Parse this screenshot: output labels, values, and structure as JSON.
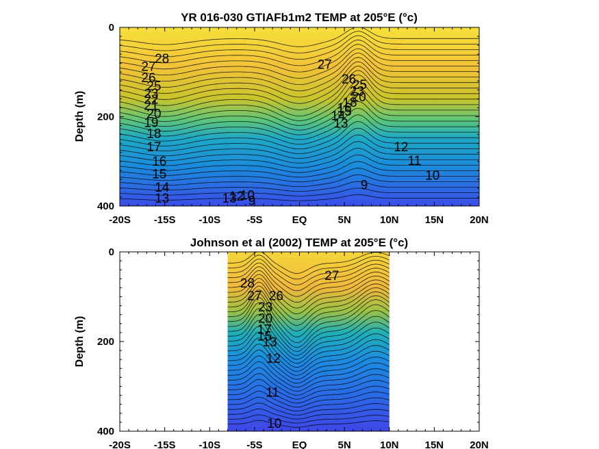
{
  "chart_data": [
    {
      "type": "heatmap",
      "title": "YR 016-030 GTIAFb1m2 TEMP at 205°E (°c)",
      "ylabel": "Depth (m)",
      "xlim": [
        -20,
        20
      ],
      "ylim": [
        0,
        400
      ],
      "y_reversed": true,
      "x_ticks": [
        -20,
        -15,
        -10,
        -5,
        0,
        5,
        10,
        15,
        20
      ],
      "x_tick_labels": [
        "-20S",
        "-15S",
        "-10S",
        "-5S",
        "EQ",
        "5N",
        "10N",
        "15N",
        "20N"
      ],
      "y_ticks": [
        0,
        200,
        400
      ],
      "y_tick_labels": [
        "0",
        "200",
        "400"
      ],
      "data_extent_x": [
        -20,
        20
      ],
      "colormap": "parula",
      "contour_levels": [
        9,
        10,
        11,
        12,
        13,
        14,
        15,
        16,
        17,
        18,
        19,
        20,
        21,
        22,
        23,
        24,
        25,
        26,
        27,
        28
      ],
      "contour_labels": [
        {
          "text": "28",
          "x": -15.3,
          "y": 72
        },
        {
          "text": "27",
          "x": -16.8,
          "y": 90
        },
        {
          "text": "26",
          "x": -16.8,
          "y": 115
        },
        {
          "text": "25",
          "x": -16.2,
          "y": 133
        },
        {
          "text": "23",
          "x": -16.5,
          "y": 150
        },
        {
          "text": "22",
          "x": -16.5,
          "y": 163
        },
        {
          "text": "21",
          "x": -16.5,
          "y": 177
        },
        {
          "text": "20",
          "x": -16.2,
          "y": 195
        },
        {
          "text": "19",
          "x": -16.5,
          "y": 215
        },
        {
          "text": "18",
          "x": -16.2,
          "y": 240
        },
        {
          "text": "17",
          "x": -16.2,
          "y": 270
        },
        {
          "text": "16",
          "x": -15.6,
          "y": 302
        },
        {
          "text": "15",
          "x": -15.6,
          "y": 330
        },
        {
          "text": "14",
          "x": -15.3,
          "y": 360
        },
        {
          "text": "13",
          "x": -15.3,
          "y": 385
        },
        {
          "text": "13",
          "x": -7.8,
          "y": 385
        },
        {
          "text": "12",
          "x": -7.0,
          "y": 380
        },
        {
          "text": "10",
          "x": -5.8,
          "y": 378
        },
        {
          "text": "9",
          "x": -5.3,
          "y": 390
        },
        {
          "text": "27",
          "x": 2.8,
          "y": 85
        },
        {
          "text": "26",
          "x": 5.5,
          "y": 118
        },
        {
          "text": "25",
          "x": 6.7,
          "y": 130
        },
        {
          "text": "23",
          "x": 6.4,
          "y": 145
        },
        {
          "text": "20",
          "x": 6.6,
          "y": 158
        },
        {
          "text": "18",
          "x": 5.6,
          "y": 170
        },
        {
          "text": "16",
          "x": 5.0,
          "y": 182
        },
        {
          "text": "15",
          "x": 5.0,
          "y": 190
        },
        {
          "text": "14",
          "x": 4.3,
          "y": 200
        },
        {
          "text": "13",
          "x": 4.6,
          "y": 217
        },
        {
          "text": "12",
          "x": 11.3,
          "y": 270
        },
        {
          "text": "11",
          "x": 12.8,
          "y": 300
        },
        {
          "text": "10",
          "x": 14.8,
          "y": 333
        },
        {
          "text": "9",
          "x": 7.2,
          "y": 355
        }
      ]
    },
    {
      "type": "heatmap",
      "title": "Johnson et al (2002) TEMP at 205°E (°c)",
      "ylabel": "Depth (m)",
      "xlim": [
        -20,
        20
      ],
      "ylim": [
        0,
        400
      ],
      "y_reversed": true,
      "x_ticks": [
        -20,
        -15,
        -10,
        -5,
        0,
        5,
        10,
        15,
        20
      ],
      "x_tick_labels": [
        "-20S",
        "-15S",
        "-10S",
        "-5S",
        "EQ",
        "5N",
        "10N",
        "15N",
        "20N"
      ],
      "y_ticks": [
        0,
        200,
        400
      ],
      "y_tick_labels": [
        "0",
        "200",
        "400"
      ],
      "data_extent_x": [
        -8,
        10
      ],
      "colormap": "parula",
      "contour_levels": [
        10,
        11,
        12,
        13,
        14,
        15,
        16,
        17,
        18,
        19,
        20,
        21,
        22,
        23,
        24,
        25,
        26,
        27,
        28
      ],
      "contour_labels": [
        {
          "text": "28",
          "x": -5.8,
          "y": 72
        },
        {
          "text": "27",
          "x": -5.0,
          "y": 100
        },
        {
          "text": "26",
          "x": -2.6,
          "y": 100
        },
        {
          "text": "23",
          "x": -3.8,
          "y": 125
        },
        {
          "text": "20",
          "x": -3.8,
          "y": 150
        },
        {
          "text": "17",
          "x": -3.9,
          "y": 175
        },
        {
          "text": "15",
          "x": -3.9,
          "y": 190
        },
        {
          "text": "13",
          "x": -3.3,
          "y": 203
        },
        {
          "text": "12",
          "x": -2.9,
          "y": 240
        },
        {
          "text": "27",
          "x": 3.6,
          "y": 55
        },
        {
          "text": "11",
          "x": -3.0,
          "y": 315
        },
        {
          "text": "10",
          "x": -2.8,
          "y": 385
        }
      ]
    }
  ]
}
